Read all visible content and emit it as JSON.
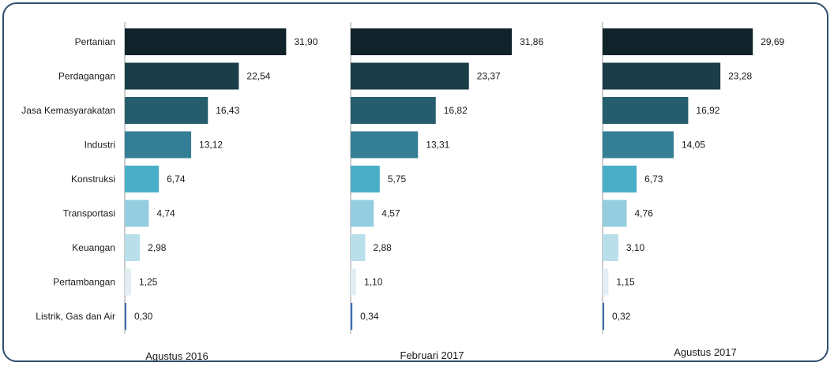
{
  "chart_data": {
    "type": "bar",
    "orientation": "horizontal",
    "categories": [
      "Pertanian",
      "Perdagangan",
      "Jasa Kemasyarakatan",
      "Industri",
      "Konstruksi",
      "Transportasi",
      "Keuangan",
      "Pertambangan",
      "Listrik, Gas dan Air"
    ],
    "bar_colors": [
      "#10232b",
      "#1a3d47",
      "#255d6c",
      "#357f96",
      "#4aaec8",
      "#95cde0",
      "#b8dfea",
      "#e2eef4",
      "#3a6fb0"
    ],
    "xlim": [
      0,
      32
    ],
    "grid": false,
    "series": [
      {
        "name": "Agustus 2016",
        "value_labels": [
          "31,90",
          "22,54",
          "16,43",
          "13,12",
          "6,74",
          "4,74",
          "2,98",
          "1,25",
          "0,30"
        ],
        "values": [
          31.9,
          22.54,
          16.43,
          13.12,
          6.74,
          4.74,
          2.98,
          1.25,
          0.3
        ]
      },
      {
        "name": "Februari 2017",
        "value_labels": [
          "31,86",
          "23,37",
          "16,82",
          "13,31",
          "5,75",
          "4,57",
          "2,88",
          "1,10",
          "0,34"
        ],
        "values": [
          31.86,
          23.37,
          16.82,
          13.31,
          5.75,
          4.57,
          2.88,
          1.1,
          0.34
        ]
      },
      {
        "name": "Agustus 2017",
        "value_labels": [
          "29,69",
          "23,28",
          "16,92",
          "14,05",
          "6,73",
          "4,76",
          "3,10",
          "1,15",
          "0,32"
        ],
        "values": [
          29.69,
          23.28,
          16.92,
          14.05,
          6.73,
          4.76,
          3.1,
          1.15,
          0.32
        ]
      }
    ]
  }
}
